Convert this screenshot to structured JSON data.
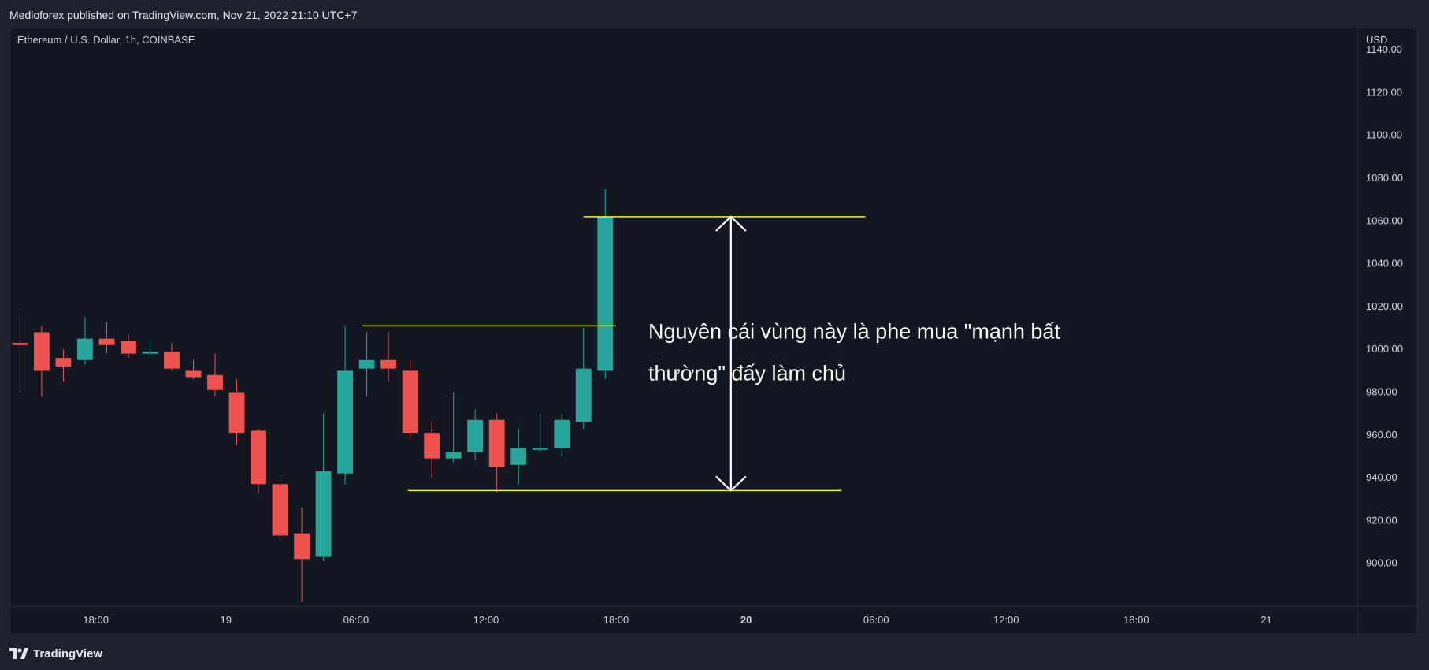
{
  "header": {
    "published_text": "Medioforex published on TradingView.com, Nov 21, 2022 21:10 UTC+7"
  },
  "footer": {
    "brand": "TradingView"
  },
  "colors": {
    "background": "#131722",
    "up": "#26a69a",
    "down": "#ef5350",
    "level_line": "#f7f31a",
    "annotation": "#ffffff"
  },
  "chart_data": {
    "type": "candlestick",
    "symbol_title": "Ethereum / U.S. Dollar, 1h, COINBASE",
    "currency": "USD",
    "y_ticks": [
      900,
      920,
      940,
      960,
      980,
      1000,
      1020,
      1040,
      1060,
      1080,
      1100,
      1120,
      1140
    ],
    "y_tick_labels": [
      "900.00",
      "920.00",
      "940.00",
      "960.00",
      "980.00",
      "1000.00",
      "1020.00",
      "1040.00",
      "1060.00",
      "1080.00",
      "1100.00",
      "1120.00",
      "1140.00"
    ],
    "ylim": [
      880,
      1150
    ],
    "x_ticks": [
      {
        "label": "18:00",
        "t": 1
      },
      {
        "label": "19",
        "t": 7
      },
      {
        "label": "06:00",
        "t": 13
      },
      {
        "label": "12:00",
        "t": 19
      },
      {
        "label": "18:00",
        "t": 25
      },
      {
        "label": "20",
        "t": 31,
        "bold": true
      },
      {
        "label": "06:00",
        "t": 37
      },
      {
        "label": "12:00",
        "t": 43
      },
      {
        "label": "18:00",
        "t": 49
      },
      {
        "label": "21",
        "t": 55
      }
    ],
    "xlim": [
      -2.95,
      59.2
    ],
    "candles": [
      {
        "t": -2.5,
        "o": 1003,
        "h": 1017,
        "l": 980,
        "c": 1002
      },
      {
        "t": -1.5,
        "o": 1008,
        "h": 1011,
        "l": 978,
        "c": 990
      },
      {
        "t": -0.5,
        "o": 996,
        "h": 1000,
        "l": 985,
        "c": 992
      },
      {
        "t": 0.5,
        "o": 995,
        "h": 1015,
        "l": 993,
        "c": 1005
      },
      {
        "t": 1.5,
        "o": 1005,
        "h": 1013,
        "l": 998,
        "c": 1002
      },
      {
        "t": 2.5,
        "o": 1004,
        "h": 1007,
        "l": 996,
        "c": 998
      },
      {
        "t": 3.5,
        "o": 998,
        "h": 1004,
        "l": 996,
        "c": 999
      },
      {
        "t": 4.5,
        "o": 999,
        "h": 1003,
        "l": 990,
        "c": 991
      },
      {
        "t": 5.5,
        "o": 990,
        "h": 995,
        "l": 986,
        "c": 987
      },
      {
        "t": 6.5,
        "o": 988,
        "h": 998,
        "l": 978,
        "c": 981
      },
      {
        "t": 7.5,
        "o": 980,
        "h": 986,
        "l": 955,
        "c": 961
      },
      {
        "t": 8.5,
        "o": 962,
        "h": 963,
        "l": 933,
        "c": 937
      },
      {
        "t": 9.5,
        "o": 937,
        "h": 942,
        "l": 911,
        "c": 913
      },
      {
        "t": 10.5,
        "o": 914,
        "h": 926,
        "l": 882,
        "c": 902
      },
      {
        "t": 11.5,
        "o": 903,
        "h": 970,
        "l": 901,
        "c": 943
      },
      {
        "t": 12.5,
        "o": 942,
        "h": 1011,
        "l": 937,
        "c": 990
      },
      {
        "t": 13.5,
        "o": 991,
        "h": 1008,
        "l": 978,
        "c": 995
      },
      {
        "t": 14.5,
        "o": 995,
        "h": 1008,
        "l": 985,
        "c": 991
      },
      {
        "t": 15.5,
        "o": 990,
        "h": 995,
        "l": 958,
        "c": 961
      },
      {
        "t": 16.5,
        "o": 961,
        "h": 966,
        "l": 940,
        "c": 949
      },
      {
        "t": 17.5,
        "o": 949,
        "h": 980,
        "l": 947,
        "c": 952
      },
      {
        "t": 18.5,
        "o": 952,
        "h": 972,
        "l": 948,
        "c": 967
      },
      {
        "t": 19.5,
        "o": 967,
        "h": 970,
        "l": 933,
        "c": 945
      },
      {
        "t": 20.5,
        "o": 946,
        "h": 963,
        "l": 937,
        "c": 954
      },
      {
        "t": 21.5,
        "o": 953,
        "h": 970,
        "l": 952,
        "c": 954
      },
      {
        "t": 22.5,
        "o": 954,
        "h": 970,
        "l": 950,
        "c": 967
      },
      {
        "t": 23.5,
        "o": 966,
        "h": 1010,
        "l": 963,
        "c": 991
      },
      {
        "t": 24.5,
        "o": 990,
        "h": 1075,
        "l": 986,
        "c": 1062
      }
    ],
    "horizontal_lines": [
      {
        "y": 1062,
        "t_start": 23.5,
        "t_end": 36.5
      },
      {
        "y": 1011,
        "t_start": 13.3,
        "t_end": 25.0
      },
      {
        "y": 934,
        "t_start": 15.4,
        "t_end": 35.4
      }
    ],
    "arrow": {
      "t": 30.3,
      "y_top": 1062,
      "y_bottom": 934
    },
    "annotation_lines": [
      "Nguyên cái vùng này là phe mua \"mạnh bất",
      "thường\" đấy làm chủ"
    ]
  }
}
